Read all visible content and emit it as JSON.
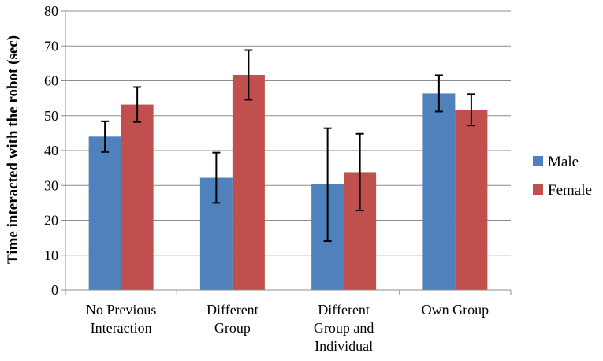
{
  "chart_data": {
    "type": "bar",
    "title": "",
    "xlabel": "",
    "ylabel": "Time interacted with the robot (sec)",
    "ylim": [
      0,
      80
    ],
    "yticks": [
      0,
      10,
      20,
      30,
      40,
      50,
      60,
      70,
      80
    ],
    "grid": true,
    "legend_position": "right",
    "categories": [
      [
        "No Previous",
        "Interaction"
      ],
      [
        "Different",
        "Group"
      ],
      [
        "Different",
        "Group and",
        "Individual"
      ],
      [
        "Own Group"
      ]
    ],
    "series": [
      {
        "name": "Male",
        "color": "#4f81bd",
        "values": [
          44,
          32.2,
          30.3,
          56.4
        ],
        "err_low": [
          39.6,
          25,
          14,
          51.2
        ],
        "err_high": [
          48.4,
          39.4,
          46.4,
          61.6
        ]
      },
      {
        "name": "Female",
        "color": "#c0504d",
        "values": [
          53.2,
          61.7,
          33.8,
          51.7
        ],
        "err_low": [
          48.2,
          54.6,
          22.8,
          47.2
        ],
        "err_high": [
          58.2,
          68.8,
          44.8,
          56.2
        ]
      }
    ]
  }
}
